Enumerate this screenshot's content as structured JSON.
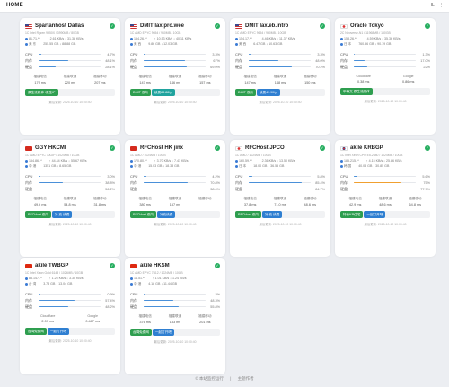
{
  "header": {
    "brand": "HOME",
    "lang": "IL",
    "menu": "⋮"
  },
  "cards": [
    {
      "name": "Spartanhost Dallas",
      "flag": "us",
      "specs": "1C Intel Ryzen 9950X / 3990MB / 80GB",
      "net1": "81.71.**",
      "net2": "↑ 2.61 KB/s ↓ 31.38 KB/s",
      "loc": "美 东",
      "t1": "255.55 GB ↓ 88.88 GB",
      "cpu": 4.7,
      "mem": 48.1,
      "disk": 28.1,
      "cpu_t": "4.7%",
      "mem_t": "48.1%",
      "disk_t": "28.1%",
      "p1n": "福建电信",
      "p1v": "179 ms",
      "p2n": "福建联通",
      "p2v": "220 ms",
      "p3n": "福建移动",
      "p3v": "207 ms",
      "btn1": "原生流媒体 /原生IP",
      "btn1c": "green",
      "btn2": "",
      "updated": "最后更新: 2025-10-10 10:00:40"
    },
    {
      "name": "DMIT lax.pro.wee",
      "flag": "us",
      "specs": "1C AMD EPYC 9654 / 960MB / 10GB",
      "net1": "154.26.**",
      "net2": "↑ 10.53 KB/s ↓ 40.11 KB/s",
      "loc": "美 西",
      "t1": "9.86 GB ↓ 12.03 GB",
      "cpu": 3.3,
      "mem": 67.0,
      "disk": 69.0,
      "cpu_t": "3.3%",
      "mem_t": "67%",
      "disk_t": "69.0%",
      "p1n": "福建电信",
      "p1v": "147 ms",
      "p2n": "福建联通",
      "p2v": "146 ms",
      "p3n": "福建移动",
      "p3v": "157 ms",
      "btn1": "DMIT 双向",
      "btn1c": "green",
      "btn2": "续费88.88/yr",
      "btn2c": "teal",
      "updated": "最后更新: 2025-10-10 10:00:40"
    },
    {
      "name": "DMIT lax.eb.intro",
      "flag": "us",
      "specs": "1C AMD EPYC 9654 / 960MB / 10GB",
      "net1": "154.17.**",
      "net2": "↑ 4.46 KB/s ↓ 11.37 KB/s",
      "loc": "美 西",
      "t1": "6.47 GB ↓ 10.63 GB",
      "cpu": 3.3,
      "mem": 48.0,
      "disk": 70.2,
      "cpu_t": "3.3%",
      "mem_t": "48.0%",
      "disk_t": "70.2%",
      "p1n": "福建电信",
      "p1v": "147 ms",
      "p2n": "福建联通",
      "p2v": "148 ms",
      "p3n": "福建移动",
      "p3v": "150 ms",
      "btn1": "DMIT 双向",
      "btn1c": "green",
      "btn2": "续费49.90/yr",
      "btn2c": "blue",
      "updated": "最后更新: 2025-10-10 10:00:40"
    },
    {
      "name": "Oracle Tokyo",
      "flag": "jp",
      "specs": "2C Neoverse-N1 / 11968MB / 150GB",
      "net1": "158.26.**",
      "net2": "↑ 4.59 KB/s ↓ 35.36 KB/s",
      "loc": "日 本",
      "t1": "760.56 GB ↓ 90.19 GB",
      "cpu": 1.3,
      "mem": 17.0,
      "disk": 22.0,
      "cpu_t": "1.3%",
      "mem_t": "17.0%",
      "disk_t": "22%",
      "p1n": "Cloudflare",
      "p1v": "0.38 ms",
      "p2n": "Google",
      "p2v": "0.86 ms",
      "p3n": "",
      "p3v": "",
      "btn1": "甲骨文 原生流媒体",
      "btn1c": "green",
      "btn2": "",
      "updated": "最后更新: 2025-10-10 10:00:40"
    },
    {
      "name": "GGY HKCMI",
      "flag": "hk",
      "specs": "1C AMD EPYC 7002P / 1024MB / 10GB",
      "net1": "154.86.**",
      "net2": "↑ 44.44 KB/s ↓ 55.67 KB/s",
      "loc": "中 港",
      "t1": "1351 GB ↓ 8.65 GB",
      "cpu": 3.0,
      "mem": 38.8,
      "disk": 56.2,
      "cpu_t": "3.0%",
      "mem_t": "38.8%",
      "disk_t": "56.2%",
      "p1n": "福建电信",
      "p1v": "49.6 ms",
      "p2n": "福建联通",
      "p2v": "54.8 ms",
      "p3n": "福建移动",
      "p3v": "31.8 ms",
      "btn1": "RFCHost 双向",
      "btn1c": "green",
      "btn2": "补 充 续费",
      "btn2c": "blue",
      "updated": "最后更新: 2025-10-10 10:00:40"
    },
    {
      "name": "RFCHost HK jinx",
      "flag": "hk",
      "specs": "1C AMD / 1024MB / 10GB",
      "net1": "170.80.**",
      "net2": "↑ 3.70 KB/s ↓ 7.41 KB/s",
      "loc": "中 港",
      "t1": "15.03 GB ↓ 18.38 GB",
      "cpu": 4.2,
      "mem": 70.8,
      "disk": 38.6,
      "cpu_t": "4.2%",
      "mem_t": "70.8%",
      "disk_t": "38.6%",
      "p1n": "福建电信",
      "p1v": "380 ms",
      "p2n": "福建联通",
      "p2v": "157 ms",
      "p3n": "福建移动",
      "p3v": "",
      "btn1": "RFCHost 双向",
      "btn1c": "green",
      "btn2": "补充续费",
      "btn2c": "blue",
      "updated": "最后更新: 2025-10-10 10:00:40"
    },
    {
      "name": "RFCHost JPCO",
      "flag": "jp",
      "specs": "1C AMD / 1024MB / 10GB",
      "net1": "160.59.**",
      "net2": "↑ 2.36 KB/s ↓ 13.50 KB/s",
      "loc": "日 本",
      "t1": "18.00 GB ↓ 36.55 GB",
      "cpu": 5.8,
      "mem": 85.4,
      "disk": 84.7,
      "cpu_t": "5.8%",
      "mem_t": "85.4%",
      "disk_t": "84.7%",
      "p1n": "福建电信",
      "p1v": "37.8 ms",
      "p2n": "福建联通",
      "p2v": "71.0 ms",
      "p3n": "福建移动",
      "p3v": "48.6 ms",
      "btn1": "RFCHost 双向",
      "btn1c": "green",
      "btn2": "补 充 续费",
      "btn2c": "blue",
      "updated": "最后更新: 2025-10-10 10:00:40"
    },
    {
      "name": "akile KRBGP",
      "flag": "kr",
      "specs": "1C Intel Xeon CPU E5-2680 / 1024MB / 10GB",
      "net1": "185.215.**",
      "net2": "↑ 4.15 KB/s ↓ 25.86 KB/s",
      "loc": "韩 国",
      "t1": "40.03 GB ↓ 30.85 GB",
      "cpu": 5.6,
      "mem": 75.0,
      "disk": 77.7,
      "cpu_t": "5.6%",
      "mem_t": "75%",
      "disk_t": "77.7%",
      "p1n": "福建电信",
      "p1v": "42.9 ms",
      "p2n": "福建联通",
      "p2v": "48.6 ms",
      "p3n": "福建移动",
      "p3v": "64.8 ms",
      "btn1": "特价KR住宅",
      "btn1c": "green",
      "btn2": "一起打开吧",
      "btn2c": "blue",
      "warn": true,
      "updated": "最后更新: 2025-10-10 10:00:40"
    },
    {
      "name": "akile TWBGP",
      "flag": "cn",
      "specs": "1C Intel Xeon Gold 6148 / 1024MB / 10GB",
      "net1": "83.147.**",
      "net2": "↑ 1.25 KB/s ↓ 3.30 KB/s",
      "loc": "台 湾",
      "t1": "3.78 GB ↓ 13.04 GB",
      "cpu": 0.9,
      "mem": 57.4,
      "disk": 48.2,
      "cpu_t": "0.9%",
      "mem_t": "57.4%",
      "disk_t": "48.2%",
      "p1n": "Cloudflare",
      "p1v": "2.09 ms",
      "p2n": "Google",
      "p2v": "0.487 ms",
      "p3n": "",
      "p3v": "",
      "btn1": "台湾免费网",
      "btn1c": "green",
      "btn2": "一起打开吧",
      "btn2c": "blue",
      "updated": "最后更新: 2025-10-10 10:00:40"
    },
    {
      "name": "akile HKSM",
      "flag": "cn",
      "specs": "1C AMD EPYC 7B12 / 1024MB / 10GB",
      "net1": "14.51.**",
      "net2": "↑ 1.01 KB/s ↓ 1.24 KB/s",
      "loc": "中 港",
      "t1": "4.18 GB ↓ 11.44 GB",
      "cpu": 2.0,
      "mem": 48.3,
      "disk": 55.8,
      "cpu_t": "2%",
      "mem_t": "48.3%",
      "disk_t": "55.8%",
      "p1n": "福建电信",
      "p1v": "376 ms",
      "p2n": "福建联通",
      "p2v": "183 ms",
      "p3n": "福建移动",
      "p3v": "201 ms",
      "btn1": "台湾免费网",
      "btn1c": "green",
      "btn2": "一起打开吧",
      "btn2c": "blue",
      "updated": "最后更新: 2025-10-10 10:00:40"
    }
  ],
  "labels": {
    "cpu": "CPU",
    "mem": "内存",
    "disk": "硬盘"
  },
  "footer": {
    "left": "© 本站监控运行",
    "right": "主题作者"
  }
}
